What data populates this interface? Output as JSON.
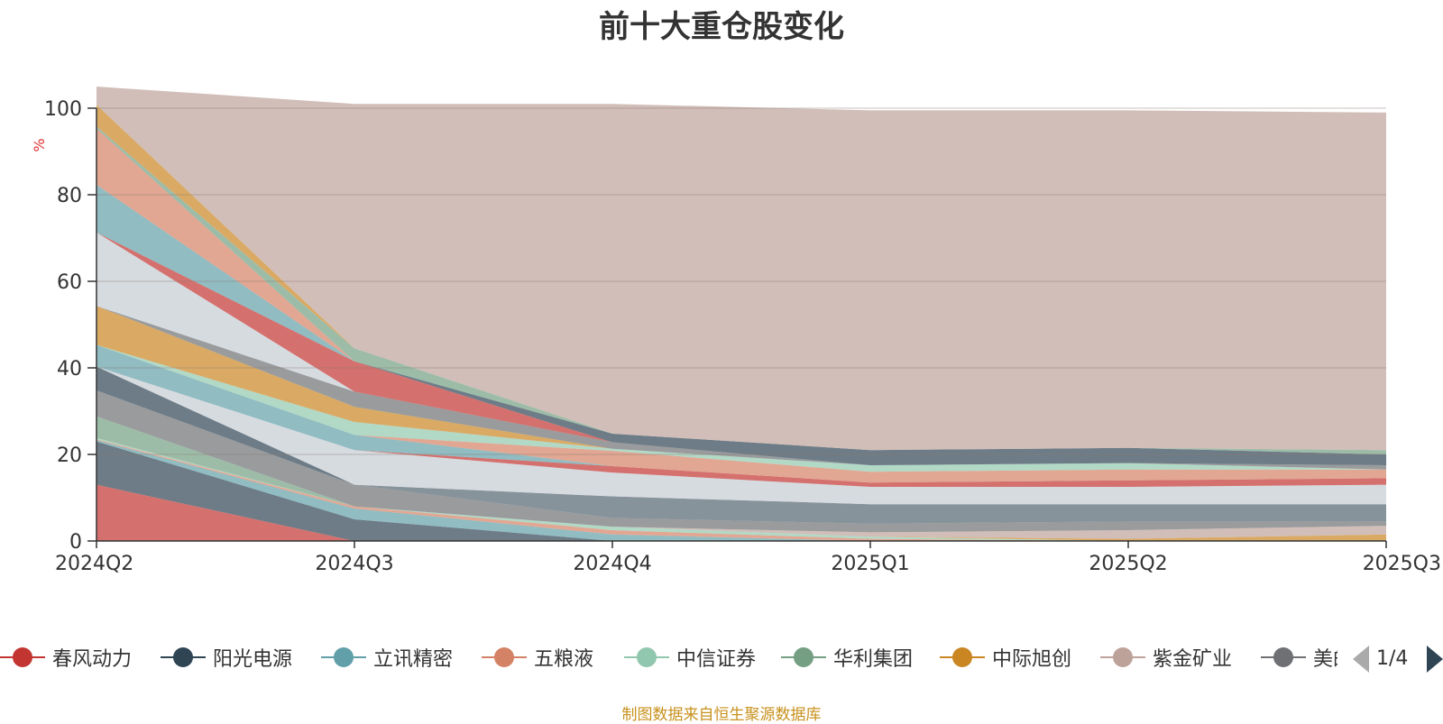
{
  "title": "前十大重仓股变化",
  "source": "制图数据来自恒生聚源数据库",
  "pager": "1/4",
  "legend": [
    {
      "name": "春风动力",
      "color": "#c23531"
    },
    {
      "name": "阳光电源",
      "color": "#2f4554"
    },
    {
      "name": "立讯精密",
      "color": "#61a0a8"
    },
    {
      "name": "五粮液",
      "color": "#d48265"
    },
    {
      "name": "中信证券",
      "color": "#91c7ae"
    },
    {
      "name": "华利集团",
      "color": "#749f83"
    },
    {
      "name": "中际旭创",
      "color": "#ca8622"
    },
    {
      "name": "紫金矿业",
      "color": "#bda29a"
    },
    {
      "name": "美的集团",
      "color": "#6e7074"
    }
  ],
  "chart_data": {
    "type": "area",
    "stacked": true,
    "title": "前十大重仓股变化",
    "ylabel": "%",
    "ylim": [
      0,
      100
    ],
    "yticks": [
      0,
      20,
      40,
      60,
      80,
      100
    ],
    "categories": [
      "2024Q2",
      "2024Q3",
      "2024Q4",
      "2025Q1",
      "2025Q2",
      "2025Q3"
    ],
    "series": [
      {
        "color": "#c23531",
        "values": [
          13.0,
          0,
          0,
          0,
          0,
          0
        ]
      },
      {
        "color": "#2f4554",
        "values": [
          10.0,
          5.0,
          0,
          0,
          0,
          0
        ]
      },
      {
        "color": "#61a0a8",
        "values": [
          0.3,
          2.5,
          1.5,
          0,
          0,
          0
        ]
      },
      {
        "color": "#d48265",
        "values": [
          0.2,
          0.5,
          1.0,
          0.5,
          0,
          0
        ]
      },
      {
        "color": "#91c7ae",
        "values": [
          0.3,
          0,
          0.8,
          0.5,
          0,
          0
        ]
      },
      {
        "color": "#749f83",
        "values": [
          5.0,
          0,
          0,
          0,
          0,
          0
        ]
      },
      {
        "color": "#ca8622",
        "values": [
          0,
          0,
          0,
          0,
          0.5,
          1.5
        ]
      },
      {
        "color": "#bda29a",
        "values": [
          0,
          0,
          0,
          1.0,
          2.0,
          2.0
        ]
      },
      {
        "color": "#6e7074",
        "values": [
          6.0,
          5.0,
          2.0,
          2.0,
          2.0,
          1.0
        ]
      },
      {
        "color": "#546570",
        "values": [
          0,
          0,
          5.0,
          4.5,
          4.0,
          4.0
        ]
      },
      {
        "color": "#c4ccd3",
        "values": [
          0,
          0,
          0,
          0,
          0,
          0
        ]
      },
      {
        "color": "#c23531",
        "values": [
          0,
          0,
          0,
          0,
          0,
          0
        ]
      },
      {
        "color": "#2f4554",
        "values": [
          5.5,
          0,
          0,
          0,
          0,
          0
        ]
      },
      {
        "color": "#c4ccd3",
        "values": [
          0,
          8.0,
          5.5,
          4.0,
          4.0,
          4.5
        ]
      },
      {
        "color": "#c23531",
        "values": [
          0,
          0,
          1.5,
          1.0,
          1.5,
          1.5
        ]
      },
      {
        "color": "#61a0a8",
        "values": [
          5.0,
          3.5,
          0,
          0,
          0,
          0
        ]
      },
      {
        "color": "#d48265",
        "values": [
          0,
          0,
          3.5,
          2.5,
          2.5,
          2.0
        ]
      },
      {
        "color": "#91c7ae",
        "values": [
          0,
          3.0,
          0.5,
          1.5,
          1.5,
          0
        ]
      },
      {
        "color": "#ca8622",
        "values": [
          9.0,
          3.5,
          0,
          0,
          0,
          0
        ]
      },
      {
        "color": "#6e7074",
        "values": [
          0,
          3.5,
          1.5,
          0,
          0,
          1.0
        ]
      },
      {
        "color": "#c4ccd3",
        "values": [
          17.0,
          0,
          0,
          0,
          0,
          0
        ]
      },
      {
        "color": "#c23531",
        "values": [
          0,
          7.0,
          0,
          0,
          0,
          0
        ]
      },
      {
        "color": "#2f4554",
        "values": [
          0,
          0,
          2.0,
          3.5,
          3.5,
          2.5
        ]
      },
      {
        "color": "#61a0a8",
        "values": [
          11.0,
          0,
          0,
          0,
          0,
          0
        ]
      },
      {
        "color": "#d48265",
        "values": [
          13.0,
          0,
          0,
          0,
          0,
          0
        ]
      },
      {
        "color": "#749f83",
        "values": [
          0.5,
          3.0,
          0,
          0,
          0,
          1.0
        ]
      },
      {
        "color": "#ca8622",
        "values": [
          5.0,
          0,
          0,
          0,
          0,
          0
        ]
      },
      {
        "color": "#bda29a",
        "values": [
          4.2,
          56.5,
          76.2,
          78.5,
          78.0,
          78.0
        ]
      }
    ]
  }
}
